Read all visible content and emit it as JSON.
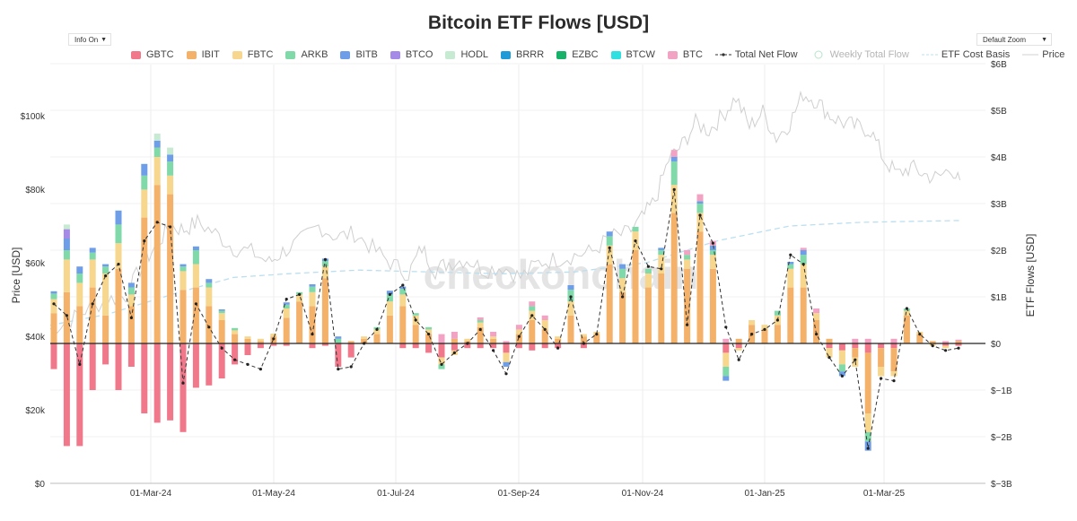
{
  "chart_data": {
    "type": "bar",
    "title": "Bitcoin ETF Flows [USD]",
    "ylabel_left": "Price [USD]",
    "ylabel_right": "ETF Flows [USD]",
    "left_ylim": [
      0,
      110000
    ],
    "right_ylim": [
      -3000000000,
      6000000000
    ],
    "left_ticks": [
      "$0",
      "$20k",
      "$40k",
      "$60k",
      "$80k",
      "$100k"
    ],
    "right_ticks": [
      "$−3B",
      "$−2B",
      "$−1B",
      "$0",
      "$1B",
      "$2B",
      "$3B",
      "$4B",
      "$5B",
      "$6B"
    ],
    "x_ticks": [
      "01-Mar-24",
      "01-May-24",
      "01-Jul-24",
      "01-Sep-24",
      "01-Nov-24",
      "01-Jan-25",
      "01-Mar-25"
    ],
    "watermark": "checkonchain",
    "legend_position": "top",
    "grid": true,
    "series": [
      {
        "name": "GBTC",
        "color": "#f0788a"
      },
      {
        "name": "IBIT",
        "color": "#f4b16a"
      },
      {
        "name": "FBTC",
        "color": "#f7d68d"
      },
      {
        "name": "ARKB",
        "color": "#7fd9a8"
      },
      {
        "name": "BITB",
        "color": "#6f9ee8"
      },
      {
        "name": "BTCO",
        "color": "#a58ae8"
      },
      {
        "name": "HODL",
        "color": "#c7ead3"
      },
      {
        "name": "BRRR",
        "color": "#1f9bd8"
      },
      {
        "name": "EZBC",
        "color": "#17b26a"
      },
      {
        "name": "BTCW",
        "color": "#2fe0e0"
      },
      {
        "name": "BTC",
        "color": "#f2a2c2"
      },
      {
        "name": "Total Net Flow",
        "color": "#333333"
      },
      {
        "name": "Weekly Total Flow",
        "color": "#b9e3cb"
      },
      {
        "name": "ETF Cost Basis",
        "color": "#bcdff0"
      },
      {
        "name": "Price",
        "color": "#d0d0d0"
      }
    ],
    "weeks": [
      {
        "GBTC": -0.55,
        "IBIT": 0.65,
        "FBTC": 0.3,
        "ARKB": 0.12,
        "BITB": 0.05,
        "total": 0.85
      },
      {
        "GBTC": -2.2,
        "IBIT": 1.1,
        "FBTC": 0.7,
        "ARKB": 0.2,
        "BITB": 0.25,
        "BTCO": 0.2,
        "HODL": 0.1,
        "total": 0.6
      },
      {
        "GBTC": -2.2,
        "IBIT": 0.8,
        "FBTC": 0.5,
        "ARKB": 0.2,
        "BITB": 0.15,
        "total": -0.45
      },
      {
        "GBTC": -1.0,
        "IBIT": 1.2,
        "FBTC": 0.6,
        "ARKB": 0.15,
        "BITB": 0.1,
        "total": 0.85
      },
      {
        "GBTC": -0.45,
        "IBIT": 0.6,
        "FBTC": 0.9,
        "ARKB": 0.15,
        "BITB": 0.05,
        "total": 1.45
      },
      {
        "GBTC": -1.0,
        "IBIT": 1.6,
        "FBTC": 0.55,
        "ARKB": 0.4,
        "BITB": 0.3,
        "total": 1.7
      },
      {
        "GBTC": -0.5,
        "IBIT": 0.8,
        "FBTC": 0.25,
        "ARKB": 0.15,
        "BITB": 0.1,
        "total": 0.55
      },
      {
        "GBTC": -1.5,
        "IBIT": 2.7,
        "FBTC": 0.6,
        "ARKB": 0.3,
        "BITB": 0.25,
        "total": 2.2
      },
      {
        "GBTC": -1.7,
        "IBIT": 3.4,
        "FBTC": 0.6,
        "ARKB": 0.2,
        "BITB": 0.15,
        "HODL": 0.15,
        "total": 2.6
      },
      {
        "GBTC": -1.65,
        "IBIT": 3.2,
        "FBTC": 0.4,
        "ARKB": 0.3,
        "BITB": 0.15,
        "HODL": 0.15,
        "total": 2.5
      },
      {
        "GBTC": -1.9,
        "IBIT": 1.15,
        "FBTC": 0.4,
        "ARKB": 0.1,
        "BITB": 0.05,
        "total": -0.85
      },
      {
        "GBTC": -0.95,
        "IBIT": 1.2,
        "FBTC": 0.5,
        "ARKB": 0.3,
        "BITB": 0.08,
        "total": 0.85
      },
      {
        "GBTC": -0.9,
        "IBIT": 0.8,
        "FBTC": 0.4,
        "ARKB": 0.1,
        "BITB": 0.08,
        "total": 0.35
      },
      {
        "GBTC": -0.75,
        "IBIT": 0.5,
        "FBTC": 0.15,
        "ARKB": 0.05,
        "BITB": 0.03,
        "total": -0.1
      },
      {
        "GBTC": -0.45,
        "IBIT": 0.2,
        "FBTC": 0.08,
        "ARKB": 0.05,
        "total": -0.35
      },
      {
        "GBTC": -0.25,
        "IBIT": 0.1,
        "FBTC": 0.05,
        "total": -0.45
      },
      {
        "GBTC": -0.1,
        "IBIT": 0.05,
        "FBTC": 0.05,
        "total": -0.55
      },
      {
        "GBTC": -0.05,
        "IBIT": 0.15,
        "FBTC": 0.06,
        "total": 0.1
      },
      {
        "GBTC": -0.05,
        "IBIT": 0.55,
        "FBTC": 0.2,
        "ARKB": 0.08,
        "BITB": 0.05,
        "total": 0.95
      },
      {
        "IBIT": 0.9,
        "FBTC": 0.15,
        "ARKB": 0.05,
        "total": 1.05
      },
      {
        "GBTC": -0.1,
        "IBIT": 0.8,
        "FBTC": 0.3,
        "ARKB": 0.12,
        "BITB": 0.05,
        "total": 0.2
      },
      {
        "GBTC": -0.05,
        "IBIT": 1.4,
        "FBTC": 0.25,
        "ARKB": 0.12,
        "BITB": 0.05,
        "total": 1.8
      },
      {
        "GBTC": -0.5,
        "ARKB": 0.1,
        "BITB": 0.05,
        "total": -0.55
      },
      {
        "GBTC": -0.3,
        "IBIT": 0.05,
        "total": -0.5
      },
      {
        "IBIT": 0.1,
        "FBTC": 0.05,
        "total": 0.0
      },
      {
        "IBIT": 0.2,
        "FBTC": 0.1,
        "ARKB": 0.05,
        "total": 0.3
      },
      {
        "IBIT": 0.6,
        "FBTC": 0.3,
        "ARKB": 0.15,
        "BITB": 0.08,
        "total": 1.05
      },
      {
        "GBTC": -0.1,
        "IBIT": 0.8,
        "FBTC": 0.25,
        "ARKB": 0.12,
        "BITB": 0.05,
        "total": 1.25
      },
      {
        "GBTC": -0.1,
        "IBIT": 0.4,
        "FBTC": 0.2,
        "ARKB": 0.05,
        "total": 0.5
      },
      {
        "GBTC": -0.2,
        "IBIT": 0.2,
        "FBTC": 0.1,
        "ARKB": 0.05,
        "total": 0.2
      },
      {
        "GBTC": -0.3,
        "ARKB": -0.1,
        "FBTC": -0.15,
        "BTC": 0.2,
        "total": -0.45
      },
      {
        "GBTC": -0.15,
        "FBTC": -0.1,
        "IBIT": 0.1,
        "BTC": 0.15,
        "total": -0.2
      },
      {
        "GBTC": -0.1,
        "IBIT": 0.05,
        "FBTC": 0.05,
        "total": 0.0
      },
      {
        "GBTC": -0.1,
        "IBIT": 0.35,
        "FBTC": 0.1,
        "ARKB": 0.05,
        "BTC": 0.06,
        "total": 0.3
      },
      {
        "GBTC": -0.1,
        "IBIT": 0.1,
        "FBTC": 0.05,
        "BTC": 0.1,
        "total": -0.15
      },
      {
        "GBTC": -0.2,
        "FBTC": -0.2,
        "BITB": -0.1,
        "BTC": 0.05,
        "total": -0.65
      },
      {
        "GBTC": -0.1,
        "IBIT": 0.2,
        "FBTC": 0.1,
        "BTC": 0.1,
        "total": 0.15
      },
      {
        "GBTC": -0.15,
        "IBIT": 0.5,
        "FBTC": 0.2,
        "ARKB": 0.1,
        "BTC": 0.1,
        "total": 0.6
      },
      {
        "GBTC": -0.1,
        "IBIT": 0.3,
        "FBTC": 0.2,
        "BTC": 0.1,
        "total": 0.3
      },
      {
        "GBTC": -0.1,
        "IBIT": 0.1,
        "FBTC": 0.05,
        "total": -0.1
      },
      {
        "IBIT": 0.6,
        "FBTC": 0.3,
        "ARKB": 0.25,
        "BITB": 0.1,
        "total": 1.0
      },
      {
        "GBTC": -0.1,
        "IBIT": 0.15,
        "FBTC": 0.05,
        "total": 0.0
      },
      {
        "IBIT": 0.2,
        "FBTC": 0.05,
        "total": 0.2
      },
      {
        "IBIT": 1.7,
        "FBTC": 0.4,
        "ARKB": 0.2,
        "BITB": 0.1,
        "total": 2.05
      },
      {
        "IBIT": 1.1,
        "FBTC": 0.3,
        "ARKB": 0.2,
        "BITB": 0.1,
        "total": 1.0
      },
      {
        "IBIT": 2.0,
        "FBTC": 0.4,
        "ARKB": 0.1,
        "total": 2.2
      },
      {
        "IBIT": 1.2,
        "FBTC": 0.3,
        "ARKB": 0.1,
        "total": 1.65
      },
      {
        "IBIT": 1.5,
        "FBTC": 0.4,
        "ARKB": 0.1,
        "BITB": 0.05,
        "total": 1.6
      },
      {
        "IBIT": 2.8,
        "FBTC": 0.6,
        "ARKB": 0.5,
        "BITB": 0.1,
        "BTC": 0.15,
        "total": 3.3
      },
      {
        "IBIT": 1.6,
        "FBTC": 0.2,
        "ARKB": 0.1,
        "BTC": 0.1,
        "total": 0.4
      },
      {
        "IBIT": 2.4,
        "FBTC": 0.4,
        "ARKB": 0.2,
        "BITB": 0.05,
        "BTC": 0.15,
        "total": 2.75
      },
      {
        "IBIT": 1.6,
        "FBTC": 0.3,
        "ARKB": 0.1,
        "BITB": 0.1,
        "BTC": 0.1,
        "total": 2.15
      },
      {
        "GBTC": -0.2,
        "FBTC": -0.3,
        "ARKB": -0.2,
        "BITB": -0.1,
        "BTC": 0.1,
        "total": 0.35
      },
      {
        "GBTC": -0.1,
        "IBIT": 0.1,
        "FBTC": -0.05,
        "total": -0.35
      },
      {
        "IBIT": 0.4,
        "FBTC": 0.1,
        "total": 0.2
      },
      {
        "IBIT": 0.3,
        "FBTC": 0.1,
        "total": 0.3
      },
      {
        "IBIT": 0.4,
        "FBTC": 0.2,
        "ARKB": 0.1,
        "total": 0.5
      },
      {
        "IBIT": 1.2,
        "FBTC": 0.4,
        "ARKB": 0.1,
        "BITB": 0.05,
        "total": 1.9
      },
      {
        "IBIT": 1.2,
        "FBTC": 0.5,
        "ARKB": 0.2,
        "BITB": 0.1,
        "BTC": 0.05,
        "total": 1.7
      },
      {
        "IBIT": 0.5,
        "FBTC": 0.15,
        "BTC": 0.1,
        "total": 0.2
      },
      {
        "GBTC": -0.1,
        "FBTC": -0.2,
        "IBIT": 0.1,
        "total": -0.3
      },
      {
        "GBTC": -0.15,
        "FBTC": -0.3,
        "ARKB": -0.15,
        "BITB": -0.1,
        "total": -0.7
      },
      {
        "GBTC": -0.1,
        "FBTC": -0.2,
        "IBIT": -0.2,
        "BTC": 0.1,
        "total": -0.35
      },
      {
        "GBTC": -0.2,
        "IBIT": -1.3,
        "FBTC": -0.4,
        "ARKB": -0.2,
        "BITB": -0.2,
        "BTC": 0.1,
        "total": -2.25
      },
      {
        "GBTC": -0.1,
        "IBIT": -0.4,
        "FBTC": -0.2,
        "total": -0.75
      },
      {
        "GBTC": -0.1,
        "IBIT": -0.5,
        "FBTC": -0.1,
        "BTC": 0.1,
        "total": -0.8
      },
      {
        "IBIT": 0.6,
        "FBTC": 0.1,
        "ARKB": 0.05,
        "total": 0.75
      },
      {
        "IBIT": 0.2,
        "FBTC": 0.05,
        "total": 0.2
      },
      {
        "FBTC": -0.05,
        "IBIT": 0.05,
        "total": -0.05
      },
      {
        "GBTC": -0.05,
        "FBTC": -0.05,
        "BTC": 0.05,
        "total": -0.15
      },
      {
        "GBTC": -0.05,
        "IBIT": 0.05,
        "BTC": 0.03,
        "total": -0.1
      }
    ]
  }
}
